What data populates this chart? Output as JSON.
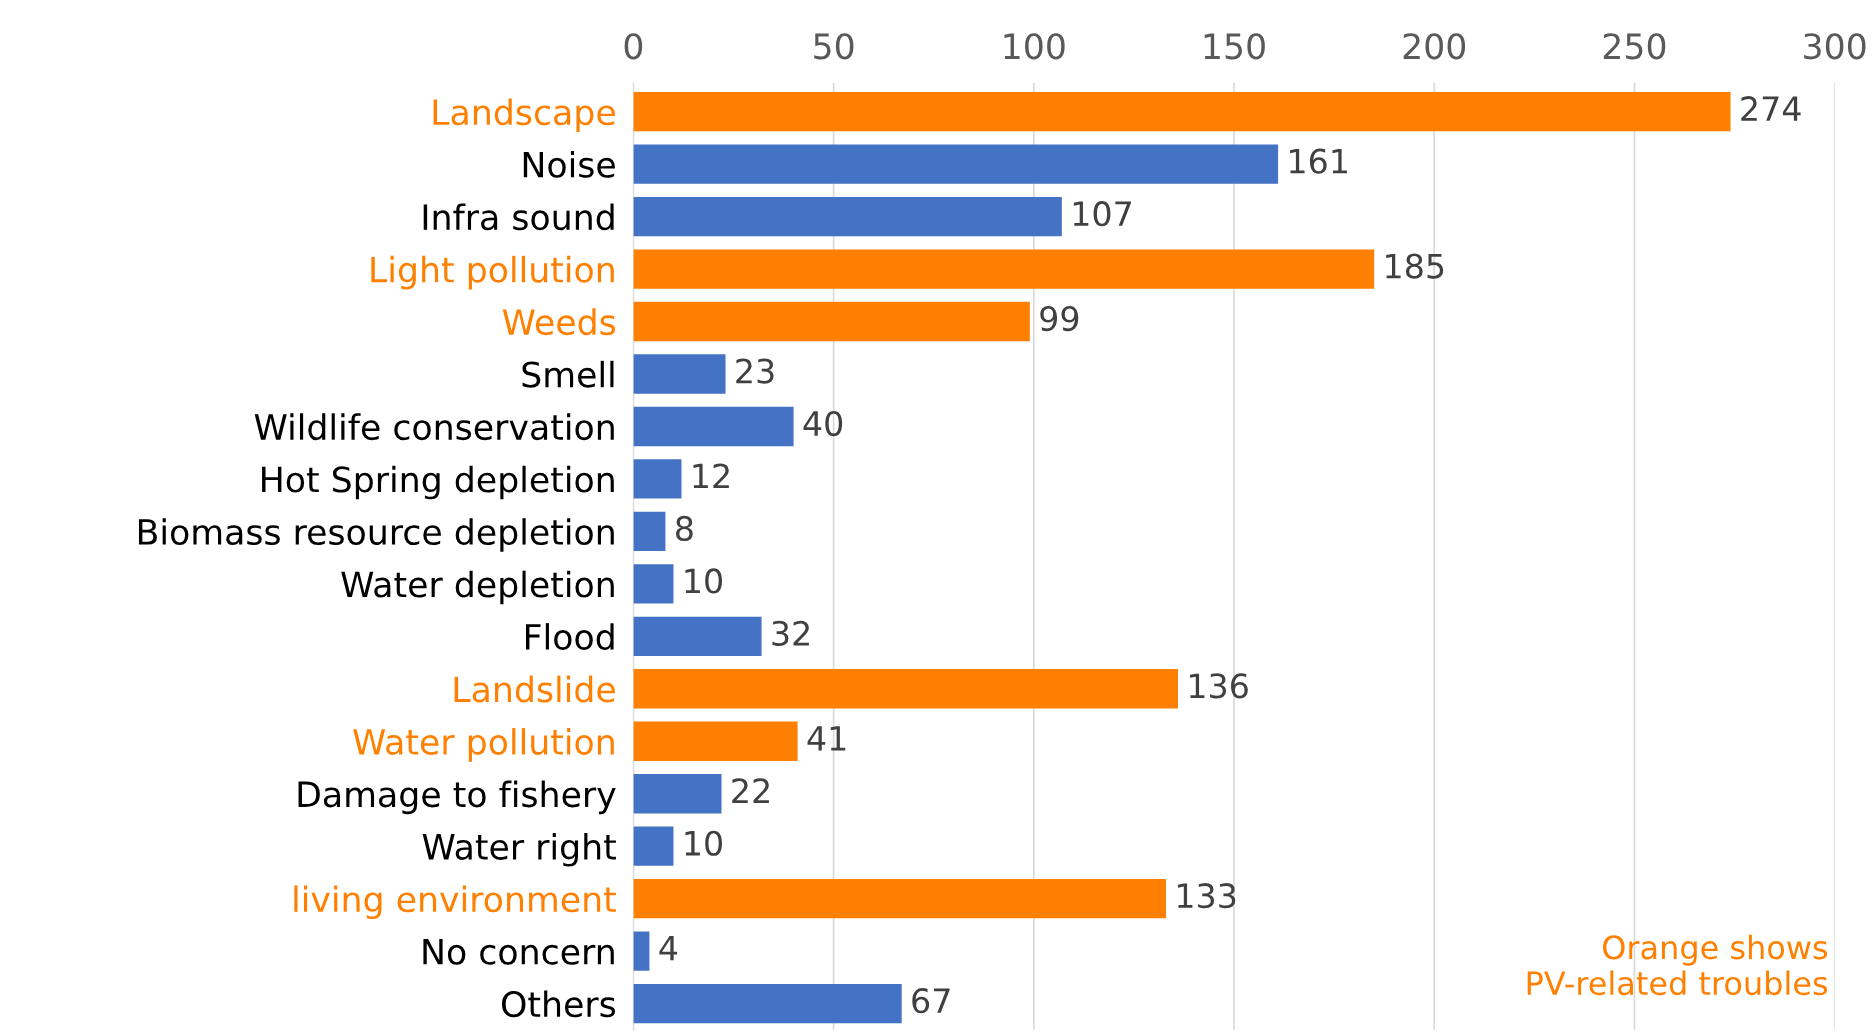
{
  "chart_data": {
    "type": "bar",
    "orientation": "horizontal",
    "categories": [
      "Landscape",
      "Noise",
      "Infra sound",
      "Light pollution",
      "Weeds",
      "Smell",
      "Wildlife conservation",
      "Hot Spring depletion",
      "Biomass resource depletion",
      "Water depletion",
      "Flood",
      "Landslide",
      "Water pollution",
      "Damage to fishery",
      "Water right",
      "living environment",
      "No concern",
      "Others"
    ],
    "values": [
      274,
      161,
      107,
      185,
      99,
      23,
      40,
      12,
      8,
      10,
      32,
      136,
      41,
      22,
      10,
      133,
      4,
      67
    ],
    "colors": [
      "#ff8000",
      "#4472c4",
      "#4472c4",
      "#ff8000",
      "#ff8000",
      "#4472c4",
      "#4472c4",
      "#4472c4",
      "#4472c4",
      "#4472c4",
      "#4472c4",
      "#ff8000",
      "#ff8000",
      "#4472c4",
      "#4472c4",
      "#ff8000",
      "#4472c4",
      "#4472c4"
    ],
    "xlim": [
      0,
      300
    ],
    "xticks": [
      0,
      50,
      100,
      150,
      200,
      250,
      300
    ],
    "grid": "x",
    "data_labels": true,
    "annotations": [
      "Orange shows\n PV-related troubles"
    ]
  }
}
